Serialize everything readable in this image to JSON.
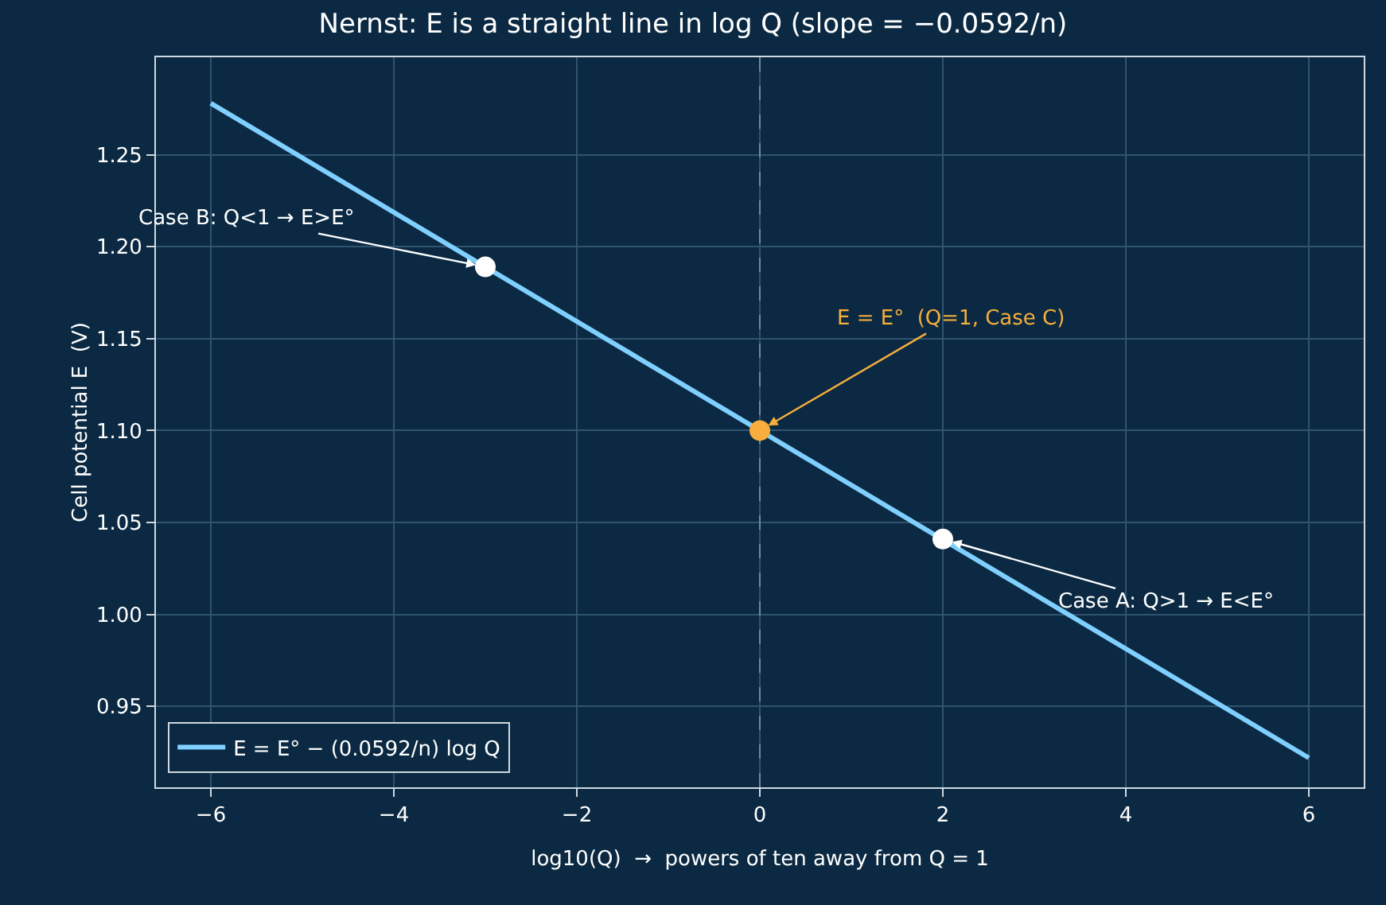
{
  "chart_data": {
    "type": "line",
    "title": "Nernst: E is a straight line in log Q (slope = −0.0592/n)",
    "xlabel": "log10(Q)  →  powers of ten away from Q = 1",
    "ylabel": "Cell potential E  (V)",
    "series": [
      {
        "name": "E = E° − (0.0592/n) log Q",
        "color": "#7fcfff",
        "x": [
          -6,
          6
        ],
        "values": [
          1.278,
          0.922
        ]
      },
      {
        "type": "scatter",
        "marker": "circle",
        "x": [
          -3,
          0,
          2
        ],
        "values": [
          1.189,
          1.1,
          1.041
        ],
        "colors": [
          "#ffffff",
          "#f7ae3c",
          "#ffffff"
        ]
      }
    ],
    "annotations": [
      {
        "text": "Case B: Q<1 → E>E°",
        "x": -3,
        "y": 1.189
      },
      {
        "text": "E = E°  (Q=1, Case C)",
        "x": 0,
        "y": 1.1
      },
      {
        "text": "Case A: Q>1 → E<E°",
        "x": 2,
        "y": 1.041
      }
    ],
    "ref_lines": [
      {
        "axis": "x",
        "value": 0,
        "color": "#6e8aa0",
        "line_style": "dashed"
      }
    ],
    "xlim": [
      -6.6,
      6.6
    ],
    "xticks": [
      {
        "value": -6,
        "label": "−6"
      },
      {
        "value": -4,
        "label": "−4"
      },
      {
        "value": -2,
        "label": "−2"
      },
      0,
      2,
      4,
      6
    ],
    "ylim": [
      0.906,
      1.303
    ],
    "yticks": [
      0.95,
      {
        "value": 1.0,
        "label": "1.00"
      },
      1.05,
      {
        "value": 1.1,
        "label": "1.10"
      },
      1.15,
      {
        "value": 1.2,
        "label": "1.20"
      },
      1.25
    ],
    "grid": true,
    "legend": "bottom left"
  }
}
